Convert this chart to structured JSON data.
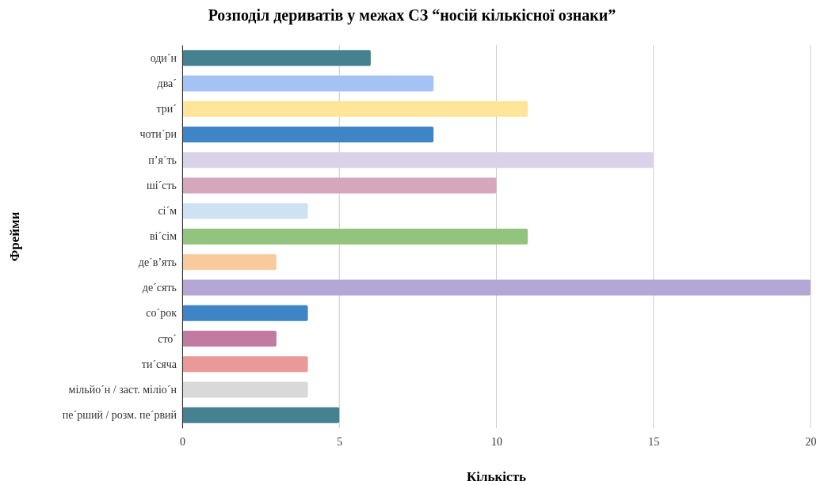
{
  "chart_data": {
    "type": "bar",
    "orientation": "horizontal",
    "title": "Розподіл дериватів у межах СЗ “носій кількісної ознаки”",
    "xlabel": "Кількість",
    "ylabel": "Фрейми",
    "categories": [
      "оди´н",
      "два´",
      "три´",
      "чоти´ри",
      "п’я´ть",
      "ші´сть",
      "сі´м",
      "ві´сім",
      "де´в’ять",
      "де´сять",
      "со´рок",
      "сто´",
      "ти´сяча",
      "мільйо´н / заст. міліо´н",
      "пе´рший / розм. пе´рвий"
    ],
    "values": [
      6,
      8,
      11,
      8,
      15,
      10,
      4,
      11,
      3,
      20,
      4,
      3,
      4,
      4,
      5
    ],
    "colors": [
      "#45818e",
      "#a4c2f4",
      "#ffe599",
      "#3d85c6",
      "#d9d2e9",
      "#d5a6bd",
      "#cfe2f3",
      "#93c47d",
      "#f9cb9c",
      "#b4a7d6",
      "#3d85c6",
      "#c27ba0",
      "#ea9999",
      "#d9d9d9",
      "#45818e"
    ],
    "xlim": [
      0,
      20
    ],
    "xticks": [
      0,
      5,
      10,
      15,
      20
    ],
    "grid": "x"
  }
}
